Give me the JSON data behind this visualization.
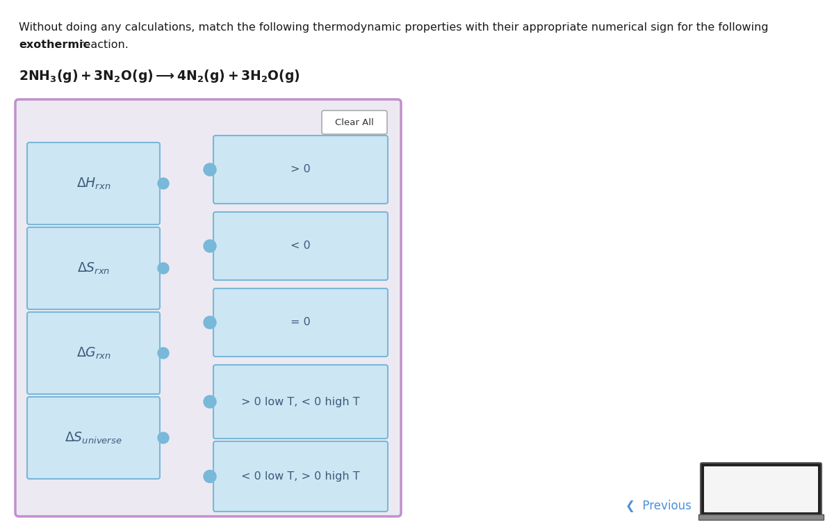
{
  "title_line1": "Without doing any calculations, match the following thermodynamic properties with their appropriate numerical sign for the following",
  "title_line2_bold": "exothermic",
  "title_line2_rest": " reaction.",
  "bg_outer": "#ede9f3",
  "bg_outer_border": "#c090cc",
  "bg_box": "#cce6f4",
  "bg_box_border": "#78b8d8",
  "dot_color": "#78b8d8",
  "previous_color": "#4a90d9",
  "left_labels_math": [
    "$\\Delta H_{rxn}$",
    "$\\Delta S_{rxn}$",
    "$\\Delta G_{rxn}$",
    "$\\Delta S_{universe}$"
  ],
  "right_labels": [
    "> 0",
    "< 0",
    "= 0",
    "> 0 low T, < 0 high T",
    "< 0 low T, > 0 high T"
  ]
}
